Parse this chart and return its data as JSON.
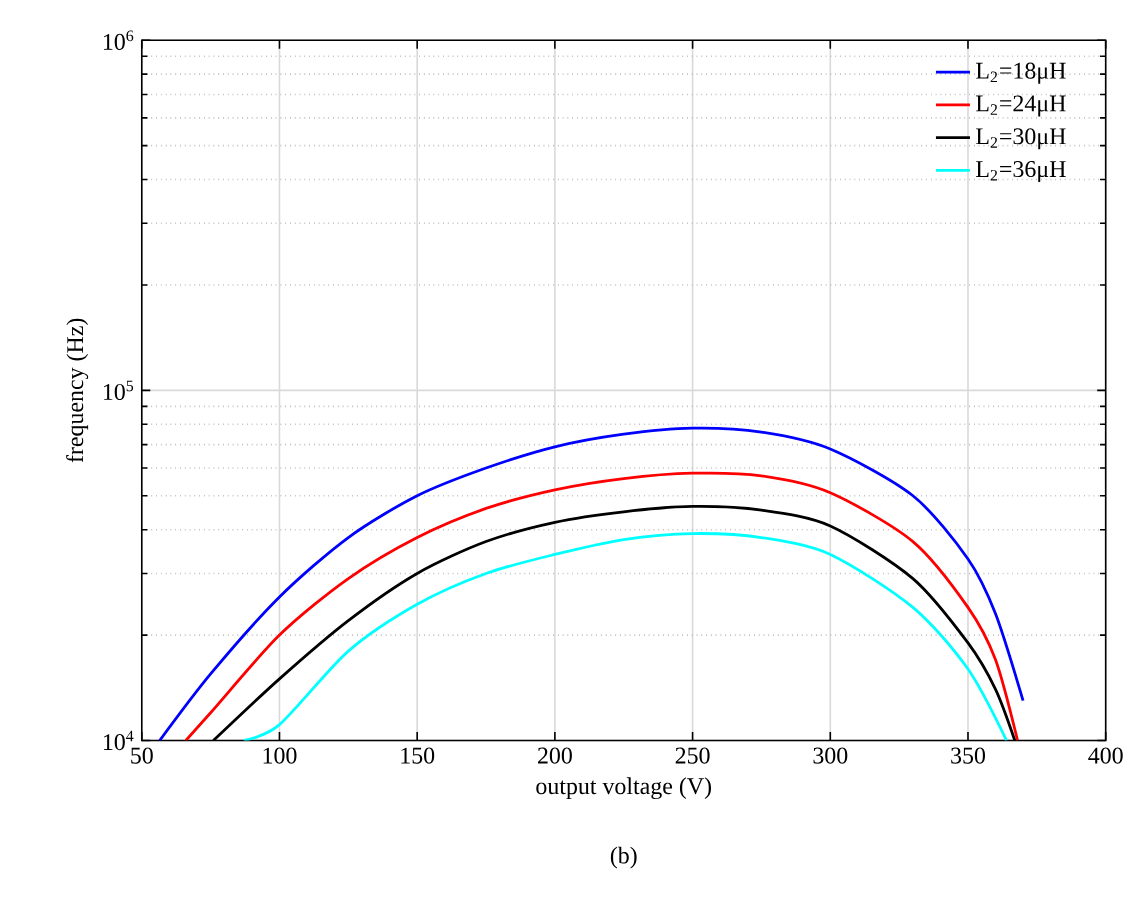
{
  "chart_data": {
    "type": "line",
    "xlabel": "output voltage (V)",
    "ylabel": "frequency (Hz)",
    "annotations": [
      "(b)"
    ],
    "log": "y",
    "grid": true,
    "legend": "top right",
    "line_style": "solid",
    "marker": "none",
    "xlim": [
      50,
      400
    ],
    "xticks": [
      50,
      100,
      150,
      200,
      250,
      300,
      350,
      400
    ],
    "ylim": [
      10000,
      1000000
    ],
    "yticks": [
      {
        "value": 10000,
        "label": "10$^{4}$"
      },
      {
        "value": 100000,
        "label": "10$^{5}$"
      },
      {
        "value": 1000000,
        "label": "10$^{6}$"
      }
    ],
    "series": [
      {
        "name": "L$_{2}$=18μH",
        "color": "#0000ff",
        "x": [
          56.5,
          75,
          100,
          125,
          150,
          175,
          200,
          225,
          250,
          275,
          300,
          330,
          350,
          360,
          370
        ],
        "values": [
          10000,
          15500,
          25700,
          38000,
          50000,
          60000,
          69000,
          75000,
          78000,
          76000,
          68000,
          50000,
          33000,
          23000,
          13000
        ]
      },
      {
        "name": "L$_{2}$=24μH",
        "color": "#ff0000",
        "x": [
          66,
          75,
          100,
          125,
          150,
          175,
          200,
          225,
          250,
          275,
          300,
          330,
          350,
          360,
          368
        ],
        "values": [
          10000,
          12000,
          20000,
          29000,
          38000,
          46000,
          52000,
          56000,
          58000,
          57000,
          51000,
          37000,
          24000,
          17000,
          10000
        ]
      },
      {
        "name": "L$_{2}$=30μH",
        "color": "#000000",
        "x": [
          76,
          100,
          125,
          150,
          175,
          200,
          225,
          250,
          275,
          300,
          330,
          350,
          360,
          367
        ],
        "values": [
          10000,
          15000,
          22000,
          30000,
          37000,
          42000,
          45000,
          46600,
          45500,
          41000,
          29000,
          19000,
          14000,
          10000
        ]
      },
      {
        "name": "L$_{2}$=36μH",
        "color": "#00ffff",
        "x": [
          87,
          100,
          125,
          150,
          175,
          200,
          225,
          250,
          275,
          300,
          330,
          350,
          364
        ],
        "values": [
          10000,
          11100,
          18000,
          24500,
          30000,
          34000,
          37500,
          39000,
          38000,
          34000,
          24000,
          16000,
          10000
        ]
      }
    ]
  }
}
